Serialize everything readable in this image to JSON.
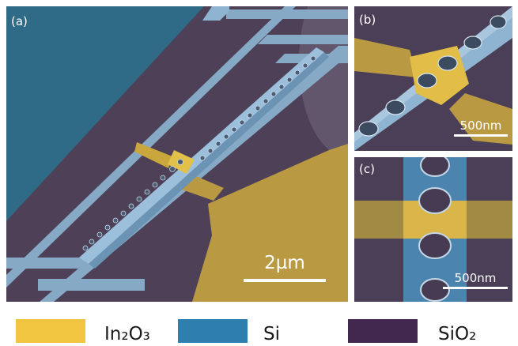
{
  "panels": {
    "a": {
      "label": "(a)",
      "scale": "2µm"
    },
    "b": {
      "label": "(b)",
      "scale": "500nm"
    },
    "c": {
      "label": "(c)",
      "scale": "500nm"
    }
  },
  "legend": [
    {
      "label": "In₂O₃",
      "color": "#f2c541"
    },
    {
      "label": "Si",
      "color": "#2f7fae"
    },
    {
      "label": "SiO₂",
      "color": "#42284f"
    }
  ],
  "colors": {
    "silicon_false_color": "#8fb4d1",
    "oxide_false_color": "#4b3d55",
    "indium_oxide_false_color": "#c9a73c"
  }
}
